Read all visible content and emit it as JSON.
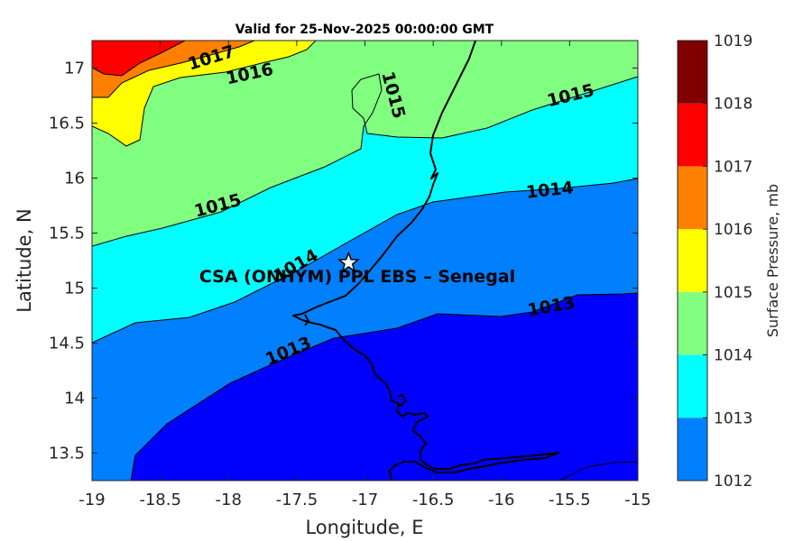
{
  "title": "Valid for 25-Nov-2025 00:00:00 GMT",
  "colors": {
    "c1012": "#0000ff",
    "c1013": "#0080ff",
    "c1014": "#00ffff",
    "c1015": "#80ff80",
    "c1016": "#ffff00",
    "c1017": "#ff8000",
    "c1018": "#ff0000",
    "c1019": "#800000",
    "coast": "#000000",
    "contour": "#000000"
  },
  "x_axis": {
    "label": "Longitude, E",
    "ticks": [
      "-19",
      "-18.5",
      "-18",
      "-17.5",
      "-17",
      "-16.5",
      "-16",
      "-15.5",
      "-15"
    ],
    "range": [
      -19,
      -15
    ]
  },
  "y_axis": {
    "label": "Latitude, N",
    "ticks": [
      "17",
      "16.5",
      "16",
      "15.5",
      "15",
      "14.5",
      "14",
      "13.5"
    ],
    "range": [
      13.25,
      17.25
    ]
  },
  "contour_labels": [
    "1017",
    "1016",
    "1015",
    "1015",
    "1015",
    "1014",
    "1014",
    "1013",
    "1013"
  ],
  "site": {
    "label": "CSA (ONHYM) PPL EBS  – Senegal",
    "lon": -17.12,
    "lat": 15.23,
    "marker": "star-icon"
  },
  "colorbar": {
    "label": "Surface Pressure, mb",
    "ticks": [
      "1019",
      "1018",
      "1017",
      "1016",
      "1015",
      "1014",
      "1013",
      "1012"
    ],
    "range": [
      1012,
      1019
    ]
  }
}
